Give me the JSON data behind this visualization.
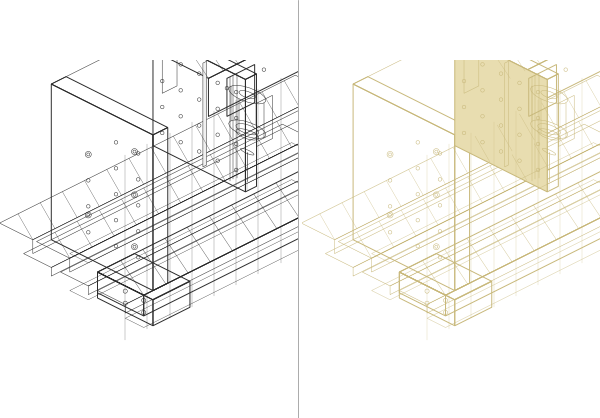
{
  "bg_left": "#ffffff",
  "bg_right": "#323c4a",
  "line_color_left": "#2a2a2a",
  "line_color_right": "#c8b87a",
  "fill_light_right": "#e8ddb0",
  "fig_width": 6.0,
  "fig_height": 4.18,
  "dpi": 100,
  "border_color": "#cccccc"
}
